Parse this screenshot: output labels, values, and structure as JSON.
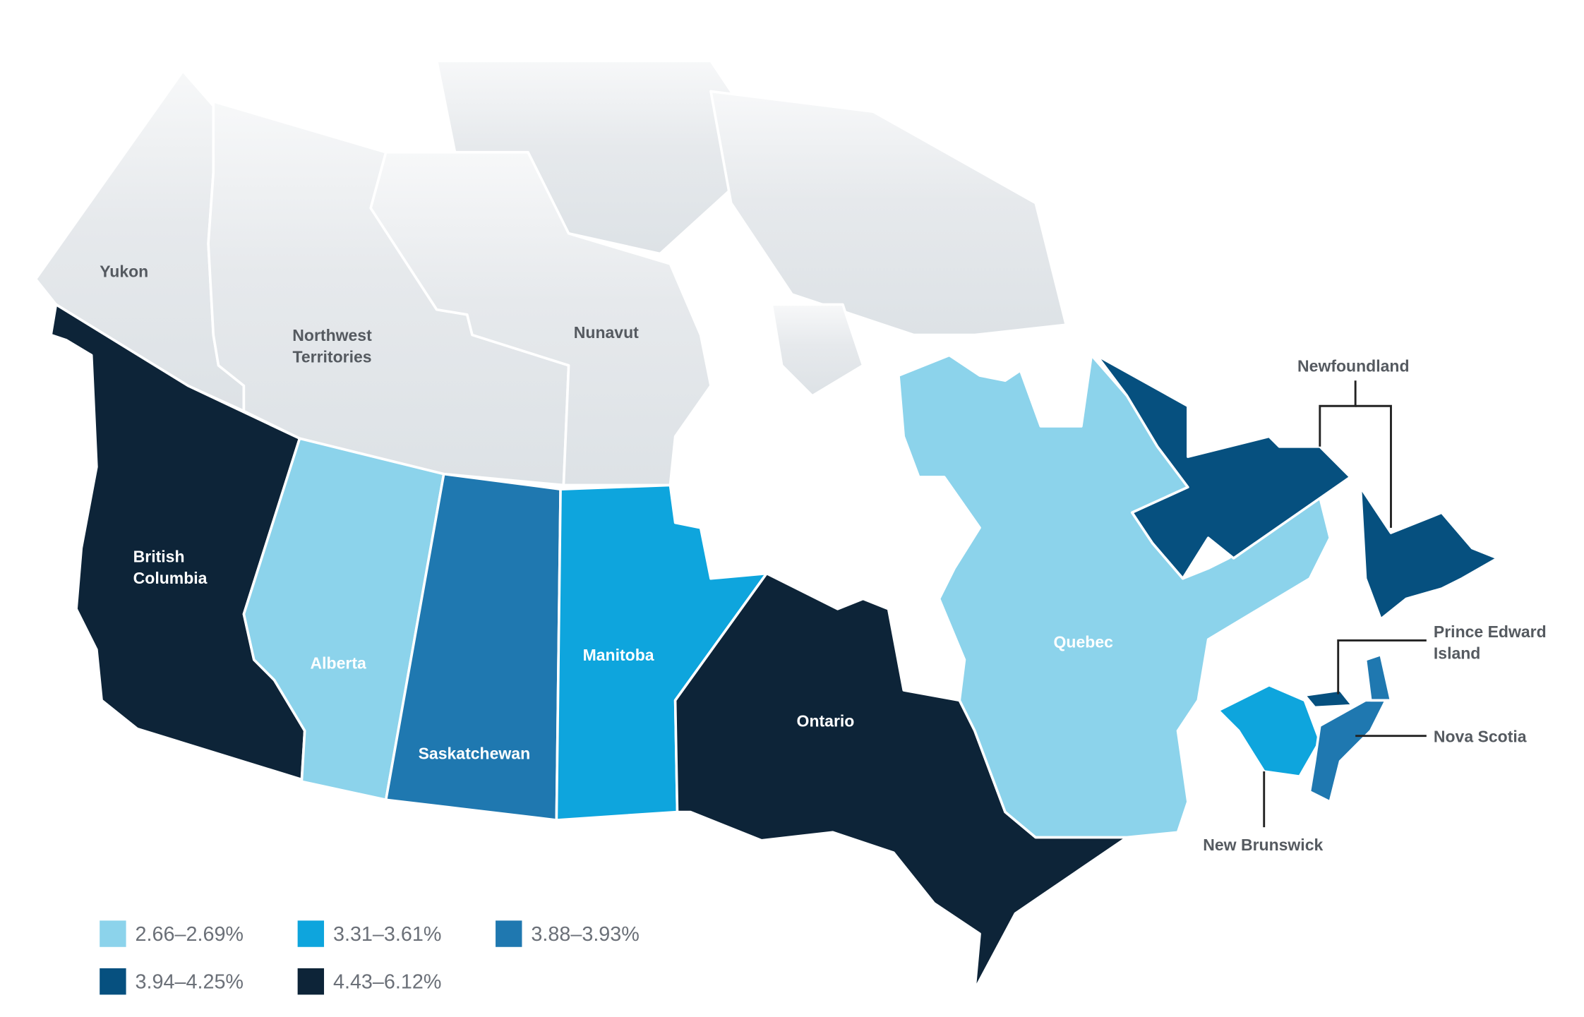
{
  "regions": [
    {
      "label": [
        "Yukon"
      ]
    },
    {
      "label": [
        "Northwest",
        "Territories"
      ]
    },
    {
      "label": [
        "Nunavut"
      ]
    },
    {
      "label": [
        "British",
        "Columbia"
      ],
      "color": "#0d2438"
    },
    {
      "label": [
        "Alberta"
      ],
      "color": "#8cd3eb"
    },
    {
      "label": [
        "Saskatchewan"
      ],
      "color": "#1f78b0"
    },
    {
      "label": [
        "Manitoba"
      ],
      "color": "#0ea5dd"
    },
    {
      "label": [
        "Ontario"
      ],
      "color": "#0d2438"
    },
    {
      "label": [
        "Quebec"
      ],
      "color": "#8cd3eb"
    },
    {
      "label": [
        "Newfoundland"
      ],
      "color": "#06507f"
    },
    {
      "label": [
        "Prince Edward",
        "Island"
      ],
      "color": "#06507f"
    },
    {
      "label": [
        "Nova Scotia"
      ],
      "color": "#1f78b0"
    },
    {
      "label": [
        "New Brunswick"
      ],
      "color": "#0ea5dd"
    }
  ],
  "legend": [
    {
      "label": "2.66–2.69%",
      "color": "#8cd3eb"
    },
    {
      "label": "3.31–3.61%",
      "color": "#0ea5dd"
    },
    {
      "label": "3.88–3.93%",
      "color": "#1f78b0"
    },
    {
      "label": "3.94–4.25%",
      "color": "#06507f"
    },
    {
      "label": "4.43–6.12%",
      "color": "#0d2438"
    }
  ]
}
